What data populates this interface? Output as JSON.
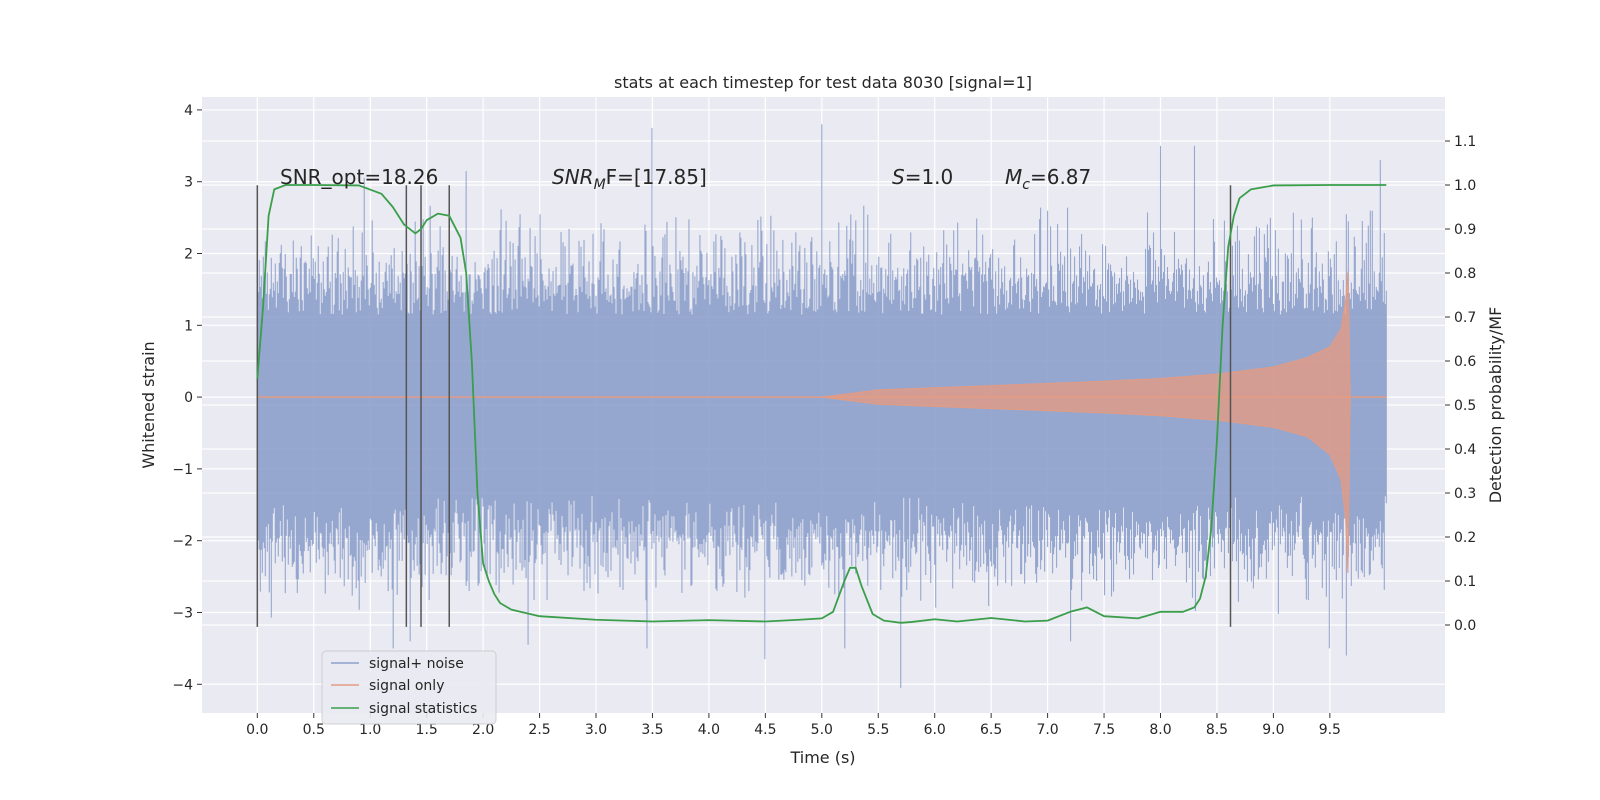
{
  "chart_data": {
    "type": "line",
    "title": "stats at each timestep for test data 8030 [signal=1]",
    "xlabel": "Time (s)",
    "ylabel": "Whitened strain",
    "y2label": "Detection probability/MF",
    "xlim": [
      -0.49,
      10.52
    ],
    "ylim": [
      -4.4,
      4.18
    ],
    "y2lim": [
      -0.2,
      1.2
    ],
    "xticks": [
      "0.0",
      "0.5",
      "1.0",
      "1.5",
      "2.0",
      "2.5",
      "3.0",
      "3.5",
      "4.0",
      "4.5",
      "5.0",
      "5.5",
      "6.0",
      "6.5",
      "7.0",
      "7.5",
      "8.0",
      "8.5",
      "9.0",
      "9.5"
    ],
    "xtick_values": [
      0,
      0.5,
      1,
      1.5,
      2,
      2.5,
      3,
      3.5,
      4,
      4.5,
      5,
      5.5,
      6,
      6.5,
      7,
      7.5,
      8,
      8.5,
      9,
      9.5
    ],
    "yticks": [
      "−4",
      "−3",
      "−2",
      "−1",
      "0",
      "1",
      "2",
      "3",
      "4"
    ],
    "ytick_values": [
      -4,
      -3,
      -2,
      -1,
      0,
      1,
      2,
      3,
      4
    ],
    "y2ticks": [
      "0.0",
      "0.1",
      "0.2",
      "0.3",
      "0.4",
      "0.5",
      "0.6",
      "0.7",
      "0.8",
      "0.9",
      "1.0",
      "1.1"
    ],
    "y2tick_values": [
      0,
      0.1,
      0.2,
      0.3,
      0.4,
      0.5,
      0.6,
      0.7,
      0.8,
      0.9,
      1.0,
      1.1
    ],
    "grid": true,
    "legend_position": "bottom-left",
    "annotations": {
      "snr_opt": "SNR_opt=18.26",
      "snr_mf_main": "SNR",
      "snr_mf_sub": "M",
      "snr_mf_rest": "F=[17.85]",
      "s_main": "S",
      "s_rest": "=1.0",
      "mc_main": "M",
      "mc_sub": "c",
      "mc_rest": "=6.87"
    },
    "series": [
      {
        "name": "signal+ noise",
        "axis": "left",
        "style": "noise-band",
        "color": "#8da0cb",
        "x_range": [
          0,
          10.0
        ],
        "core_lower": -1.35,
        "core_upper": 1.15,
        "typical_extreme": 2.3,
        "peaks": [
          [
            1.2,
            -3.5
          ],
          [
            1.35,
            -3.4
          ],
          [
            2.4,
            -3.45
          ],
          [
            3.5,
            3.75
          ],
          [
            3.45,
            -3.5
          ],
          [
            4.5,
            -3.65
          ],
          [
            5.0,
            3.8
          ],
          [
            5.2,
            -3.5
          ],
          [
            5.7,
            -4.05
          ],
          [
            7.2,
            -3.4
          ],
          [
            8.0,
            3.5
          ],
          [
            8.3,
            3.5
          ],
          [
            9.5,
            -3.5
          ],
          [
            9.65,
            -3.6
          ],
          [
            9.95,
            3.3
          ],
          [
            1.85,
            3.15
          ],
          [
            0.95,
            3.05
          ]
        ]
      },
      {
        "name": "signal only",
        "axis": "left",
        "style": "chirp-envelope",
        "color": "#e39b83",
        "x": [
          0,
          5.0,
          5.5,
          6.5,
          7.5,
          8.0,
          8.5,
          9.0,
          9.3,
          9.5,
          9.6,
          9.64,
          9.66,
          9.68,
          10.0
        ],
        "upper": [
          0.0,
          0.0,
          0.1,
          0.16,
          0.22,
          0.26,
          0.32,
          0.42,
          0.55,
          0.7,
          0.95,
          1.35,
          1.75,
          0.0,
          0.0
        ],
        "lower": [
          0.0,
          0.0,
          -0.1,
          -0.16,
          -0.22,
          -0.26,
          -0.32,
          -0.42,
          -0.55,
          -0.8,
          -1.15,
          -1.7,
          -2.45,
          0.0,
          0.0
        ]
      },
      {
        "name": "signal statistics",
        "axis": "right",
        "style": "line",
        "color": "#3a9e4a",
        "x": [
          0.0,
          0.05,
          0.1,
          0.15,
          0.25,
          0.5,
          0.9,
          1.1,
          1.2,
          1.3,
          1.4,
          1.45,
          1.5,
          1.6,
          1.7,
          1.8,
          1.85,
          1.9,
          1.95,
          2.0,
          2.05,
          2.1,
          2.15,
          2.25,
          2.5,
          3.0,
          3.5,
          4.0,
          4.5,
          4.8,
          5.0,
          5.1,
          5.2,
          5.25,
          5.3,
          5.35,
          5.45,
          5.55,
          5.7,
          5.8,
          6.0,
          6.2,
          6.5,
          6.8,
          7.0,
          7.2,
          7.35,
          7.5,
          7.8,
          8.0,
          8.2,
          8.3,
          8.35,
          8.4,
          8.45,
          8.5,
          8.55,
          8.6,
          8.65,
          8.7,
          8.8,
          9.0,
          9.5,
          10.0
        ],
        "values": [
          0.56,
          0.72,
          0.93,
          0.99,
          1.0,
          1.0,
          0.999,
          0.98,
          0.95,
          0.91,
          0.89,
          0.9,
          0.92,
          0.935,
          0.93,
          0.88,
          0.8,
          0.6,
          0.3,
          0.14,
          0.1,
          0.07,
          0.05,
          0.035,
          0.02,
          0.012,
          0.008,
          0.011,
          0.008,
          0.012,
          0.015,
          0.03,
          0.1,
          0.13,
          0.13,
          0.09,
          0.025,
          0.01,
          0.005,
          0.007,
          0.013,
          0.008,
          0.016,
          0.008,
          0.01,
          0.03,
          0.04,
          0.02,
          0.015,
          0.03,
          0.03,
          0.04,
          0.06,
          0.11,
          0.22,
          0.42,
          0.68,
          0.86,
          0.93,
          0.97,
          0.99,
          0.999,
          1.0,
          1.0
        ]
      }
    ],
    "vertical_markers": [
      {
        "x": 0.0,
        "axis": "left",
        "ymin": -3.2,
        "ymax": 2.95
      },
      {
        "x": 1.32,
        "axis": "left",
        "ymin": -3.2,
        "ymax": 2.95
      },
      {
        "x": 1.45,
        "axis": "left",
        "ymin": -3.2,
        "ymax": 2.95
      },
      {
        "x": 1.7,
        "axis": "left",
        "ymin": -3.2,
        "ymax": 2.95
      },
      {
        "x": 8.62,
        "axis": "left",
        "ymin": -3.2,
        "ymax": 2.95
      }
    ],
    "colors": {
      "plot_bg": "#eaeaf2",
      "grid": "#ffffff",
      "marker": "#555555"
    }
  }
}
